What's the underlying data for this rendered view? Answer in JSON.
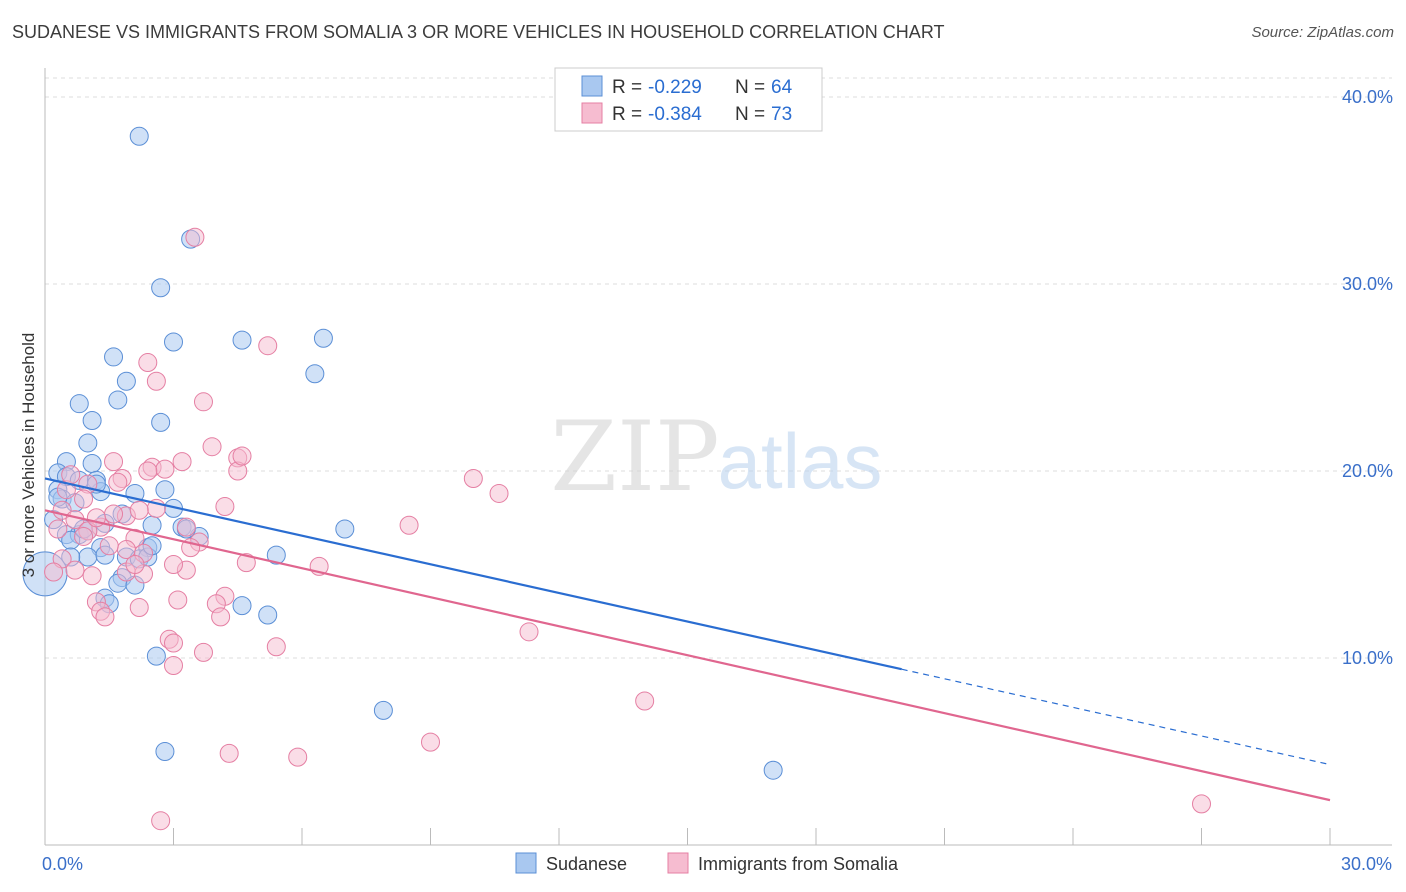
{
  "title": "SUDANESE VS IMMIGRANTS FROM SOMALIA 3 OR MORE VEHICLES IN HOUSEHOLD CORRELATION CHART",
  "source": "Source: ZipAtlas.com",
  "watermark": {
    "zip": "ZIP",
    "atlas": "atlas"
  },
  "legend_box": {
    "rows": [
      {
        "r_label": "R =",
        "r_value": "-0.229",
        "n_label": "N =",
        "n_value": "64"
      },
      {
        "r_label": "R =",
        "r_value": "-0.384",
        "n_label": "N =",
        "n_value": "73"
      }
    ]
  },
  "bottom_legend": {
    "series1": "Sudanese",
    "series2": "Immigrants from Somalia"
  },
  "colors": {
    "blue_fill": "#a9c8f0",
    "blue_stroke": "#5b8fd6",
    "blue_line": "#2a6dd1",
    "pink_fill": "#f6bcd0",
    "pink_stroke": "#e57fa3",
    "pink_line": "#e0668f",
    "tick_text": "#3a6fc9",
    "grid": "#dddddd"
  },
  "chart_data": {
    "type": "scatter",
    "title": "SUDANESE VS IMMIGRANTS FROM SOMALIA 3 OR MORE VEHICLES IN HOUSEHOLD CORRELATION CHART",
    "xlabel": "",
    "ylabel": "3 or more Vehicles in Household",
    "xlim": [
      0,
      30
    ],
    "ylim": [
      0,
      42
    ],
    "x_ticks": [
      0,
      30
    ],
    "x_tick_labels": [
      "0.0%",
      "30.0%"
    ],
    "y_ticks": [
      10,
      20,
      30,
      40
    ],
    "y_tick_labels": [
      "10.0%",
      "20.0%",
      "30.0%",
      "40.0%"
    ],
    "grid": true,
    "legend_position": "top-center",
    "series": [
      {
        "name": "Sudanese",
        "r": -0.229,
        "n": 64,
        "trend": {
          "x0": 0,
          "y0": 19.6,
          "x1": 20,
          "y1": 9.4,
          "dashed_to_x": 30,
          "dashed_to_y": 4.3
        },
        "points": [
          [
            2.2,
            37.9
          ],
          [
            3.4,
            32.4
          ],
          [
            2.7,
            29.8
          ],
          [
            3.0,
            26.9
          ],
          [
            4.6,
            27.0
          ],
          [
            6.5,
            27.1
          ],
          [
            1.6,
            26.1
          ],
          [
            1.9,
            24.8
          ],
          [
            6.3,
            25.2
          ],
          [
            1.7,
            23.8
          ],
          [
            0.8,
            23.6
          ],
          [
            1.1,
            22.7
          ],
          [
            2.7,
            22.6
          ],
          [
            1.0,
            21.5
          ],
          [
            0.5,
            20.5
          ],
          [
            1.1,
            20.4
          ],
          [
            0.3,
            19.9
          ],
          [
            0.5,
            19.7
          ],
          [
            0.8,
            19.5
          ],
          [
            1.2,
            19.5
          ],
          [
            0.3,
            19.0
          ],
          [
            2.8,
            19.0
          ],
          [
            2.1,
            18.8
          ],
          [
            1.3,
            18.9
          ],
          [
            0.4,
            18.5
          ],
          [
            0.7,
            18.3
          ],
          [
            3.0,
            18.0
          ],
          [
            1.8,
            17.7
          ],
          [
            2.5,
            17.1
          ],
          [
            1.4,
            17.2
          ],
          [
            0.2,
            17.4
          ],
          [
            3.2,
            17.0
          ],
          [
            7.0,
            16.9
          ],
          [
            0.5,
            16.6
          ],
          [
            0.8,
            16.6
          ],
          [
            1.0,
            16.8
          ],
          [
            0.6,
            16.3
          ],
          [
            3.6,
            16.5
          ],
          [
            2.4,
            15.9
          ],
          [
            1.3,
            15.9
          ],
          [
            5.4,
            15.5
          ],
          [
            1.0,
            15.4
          ],
          [
            0.6,
            15.4
          ],
          [
            1.9,
            15.4
          ],
          [
            2.2,
            15.3
          ],
          [
            1.8,
            14.3
          ],
          [
            1.7,
            14.0
          ],
          [
            2.1,
            13.9
          ],
          [
            1.4,
            13.2
          ],
          [
            1.5,
            12.9
          ],
          [
            4.6,
            12.8
          ],
          [
            5.2,
            12.3
          ],
          [
            2.6,
            10.1
          ],
          [
            7.9,
            7.2
          ],
          [
            0.0,
            14.5
          ],
          [
            2.8,
            5.0
          ],
          [
            17.0,
            4.0
          ],
          [
            1.4,
            15.5
          ],
          [
            0.9,
            16.9
          ],
          [
            2.4,
            15.4
          ],
          [
            3.3,
            16.9
          ],
          [
            1.2,
            19.3
          ],
          [
            0.3,
            18.6
          ],
          [
            2.5,
            16.0
          ]
        ]
      },
      {
        "name": "Immigrants from Somalia",
        "r": -0.384,
        "n": 73,
        "trend": {
          "x0": 0,
          "y0": 17.9,
          "x1": 30,
          "y1": 2.4
        },
        "points": [
          [
            3.5,
            32.5
          ],
          [
            5.2,
            26.7
          ],
          [
            2.4,
            25.8
          ],
          [
            2.6,
            24.8
          ],
          [
            3.7,
            23.7
          ],
          [
            3.9,
            21.3
          ],
          [
            4.5,
            20.7
          ],
          [
            1.6,
            20.5
          ],
          [
            3.2,
            20.5
          ],
          [
            2.5,
            20.2
          ],
          [
            2.8,
            20.1
          ],
          [
            4.5,
            20.0
          ],
          [
            2.4,
            20.0
          ],
          [
            10.0,
            19.6
          ],
          [
            1.8,
            19.6
          ],
          [
            1.0,
            19.3
          ],
          [
            0.5,
            19.0
          ],
          [
            10.6,
            18.8
          ],
          [
            0.9,
            18.5
          ],
          [
            2.6,
            18.0
          ],
          [
            4.2,
            18.1
          ],
          [
            0.4,
            17.9
          ],
          [
            1.9,
            17.6
          ],
          [
            1.6,
            17.7
          ],
          [
            0.7,
            17.4
          ],
          [
            1.3,
            17.0
          ],
          [
            8.5,
            17.1
          ],
          [
            3.3,
            17.0
          ],
          [
            1.0,
            16.8
          ],
          [
            0.3,
            16.9
          ],
          [
            2.1,
            16.4
          ],
          [
            3.6,
            16.2
          ],
          [
            1.9,
            15.8
          ],
          [
            2.3,
            15.6
          ],
          [
            0.4,
            15.3
          ],
          [
            4.7,
            15.1
          ],
          [
            6.4,
            14.9
          ],
          [
            0.7,
            14.7
          ],
          [
            1.9,
            14.6
          ],
          [
            3.3,
            14.7
          ],
          [
            2.3,
            14.5
          ],
          [
            1.1,
            14.4
          ],
          [
            0.2,
            14.6
          ],
          [
            4.2,
            13.3
          ],
          [
            3.1,
            13.1
          ],
          [
            1.2,
            13.0
          ],
          [
            4.0,
            12.9
          ],
          [
            2.2,
            12.7
          ],
          [
            1.3,
            12.5
          ],
          [
            4.1,
            12.2
          ],
          [
            11.3,
            11.4
          ],
          [
            2.9,
            11.0
          ],
          [
            3.0,
            10.8
          ],
          [
            5.4,
            10.6
          ],
          [
            3.7,
            10.3
          ],
          [
            3.0,
            9.6
          ],
          [
            14.0,
            7.7
          ],
          [
            9.0,
            5.5
          ],
          [
            4.3,
            4.9
          ],
          [
            5.9,
            4.7
          ],
          [
            27.0,
            2.2
          ],
          [
            2.7,
            1.3
          ],
          [
            1.5,
            16.0
          ],
          [
            2.1,
            15.0
          ],
          [
            0.9,
            16.5
          ],
          [
            3.4,
            15.9
          ],
          [
            1.7,
            19.4
          ],
          [
            2.2,
            17.9
          ],
          [
            0.6,
            19.8
          ],
          [
            3.0,
            15.0
          ],
          [
            1.4,
            12.2
          ],
          [
            4.6,
            20.8
          ],
          [
            1.2,
            17.5
          ]
        ]
      }
    ]
  }
}
